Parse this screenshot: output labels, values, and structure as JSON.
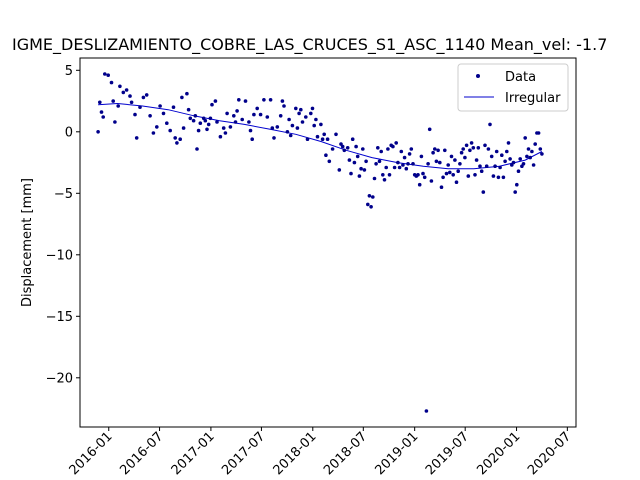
{
  "chart_data": {
    "type": "scatter",
    "title": "IGME_DESLIZAMIENTO_COBRE_LAS_CRUCES_S1_ASC_1140     Mean_vel: -1.7",
    "xlabel": "",
    "ylabel": "Displacement [mm]",
    "xlim": [
      "2015-09-20",
      "2020-08-01"
    ],
    "ylim": [
      -24.0,
      6.0
    ],
    "x_ticks": [
      "2016-01",
      "2016-07",
      "2017-01",
      "2017-07",
      "2018-01",
      "2018-07",
      "2019-01",
      "2019-07",
      "2020-01",
      "2020-07"
    ],
    "y_ticks": [
      5,
      0,
      -5,
      -10,
      -15,
      -20
    ],
    "grid": false,
    "legend": {
      "position": "top-right",
      "entries": [
        "Data",
        "Irregular"
      ]
    },
    "colors": {
      "data": "#00008b",
      "fit": "#0000cd"
    },
    "series": [
      {
        "name": "Data",
        "style": "points",
        "points": [
          [
            "2015-11-24",
            0.0
          ],
          [
            "2015-11-30",
            2.4
          ],
          [
            "2015-12-06",
            1.6
          ],
          [
            "2015-12-12",
            1.2
          ],
          [
            "2015-12-18",
            4.7
          ],
          [
            "2015-12-30",
            4.6
          ],
          [
            "2016-01-11",
            4.0
          ],
          [
            "2016-01-17",
            2.5
          ],
          [
            "2016-01-23",
            0.8
          ],
          [
            "2016-02-04",
            2.1
          ],
          [
            "2016-02-10",
            3.7
          ],
          [
            "2016-02-22",
            3.2
          ],
          [
            "2016-03-05",
            3.4
          ],
          [
            "2016-03-17",
            2.9
          ],
          [
            "2016-03-23",
            2.4
          ],
          [
            "2016-04-04",
            1.4
          ],
          [
            "2016-04-10",
            -0.5
          ],
          [
            "2016-04-22",
            2.0
          ],
          [
            "2016-05-04",
            2.8
          ],
          [
            "2016-05-16",
            3.0
          ],
          [
            "2016-05-28",
            1.3
          ],
          [
            "2016-06-09",
            -0.1
          ],
          [
            "2016-06-21",
            0.4
          ],
          [
            "2016-07-03",
            2.1
          ],
          [
            "2016-07-15",
            1.5
          ],
          [
            "2016-07-27",
            0.7
          ],
          [
            "2016-08-08",
            0.1
          ],
          [
            "2016-08-20",
            2.0
          ],
          [
            "2016-08-26",
            -0.5
          ],
          [
            "2016-09-01",
            -0.9
          ],
          [
            "2016-09-13",
            -0.6
          ],
          [
            "2016-09-19",
            2.8
          ],
          [
            "2016-09-25",
            0.3
          ],
          [
            "2016-10-07",
            3.1
          ],
          [
            "2016-10-13",
            1.8
          ],
          [
            "2016-10-19",
            1.1
          ],
          [
            "2016-10-31",
            0.9
          ],
          [
            "2016-11-06",
            1.3
          ],
          [
            "2016-11-12",
            -1.4
          ],
          [
            "2016-11-18",
            0.1
          ],
          [
            "2016-11-24",
            0.7
          ],
          [
            "2016-12-06",
            1.1
          ],
          [
            "2016-12-12",
            0.9
          ],
          [
            "2016-12-18",
            0.2
          ],
          [
            "2016-12-24",
            0.6
          ],
          [
            "2016-12-30",
            1.1
          ],
          [
            "2017-01-05",
            2.2
          ],
          [
            "2017-01-17",
            2.5
          ],
          [
            "2017-01-23",
            0.8
          ],
          [
            "2017-02-04",
            -0.4
          ],
          [
            "2017-02-16",
            0.3
          ],
          [
            "2017-02-22",
            -0.1
          ],
          [
            "2017-02-28",
            1.5
          ],
          [
            "2017-03-12",
            0.4
          ],
          [
            "2017-03-24",
            1.3
          ],
          [
            "2017-03-30",
            0.8
          ],
          [
            "2017-04-05",
            1.7
          ],
          [
            "2017-04-11",
            2.6
          ],
          [
            "2017-04-23",
            1.0
          ],
          [
            "2017-05-05",
            2.5
          ],
          [
            "2017-05-17",
            0.8
          ],
          [
            "2017-05-23",
            0.1
          ],
          [
            "2017-05-29",
            -0.6
          ],
          [
            "2017-06-04",
            1.4
          ],
          [
            "2017-06-16",
            1.9
          ],
          [
            "2017-06-28",
            1.4
          ],
          [
            "2017-07-10",
            2.6
          ],
          [
            "2017-07-22",
            1.2
          ],
          [
            "2017-08-03",
            2.6
          ],
          [
            "2017-08-09",
            0.3
          ],
          [
            "2017-08-15",
            -0.5
          ],
          [
            "2017-08-27",
            0.4
          ],
          [
            "2017-09-08",
            1.3
          ],
          [
            "2017-09-14",
            2.5
          ],
          [
            "2017-09-20",
            2.1
          ],
          [
            "2017-10-02",
            0.0
          ],
          [
            "2017-10-08",
            1.0
          ],
          [
            "2017-10-14",
            -0.3
          ],
          [
            "2017-10-20",
            0.5
          ],
          [
            "2017-11-01",
            1.9
          ],
          [
            "2017-11-07",
            0.3
          ],
          [
            "2017-11-13",
            1.5
          ],
          [
            "2017-11-19",
            1.8
          ],
          [
            "2017-11-25",
            0.8
          ],
          [
            "2017-12-07",
            1.2
          ],
          [
            "2017-12-13",
            -0.6
          ],
          [
            "2017-12-25",
            1.5
          ],
          [
            "2017-12-31",
            1.9
          ],
          [
            "2018-01-06",
            0.5
          ],
          [
            "2018-01-12",
            1.0
          ],
          [
            "2018-01-18",
            -0.4
          ],
          [
            "2018-01-30",
            0.6
          ],
          [
            "2018-02-05",
            -0.6
          ],
          [
            "2018-02-11",
            -0.2
          ],
          [
            "2018-02-17",
            -1.9
          ],
          [
            "2018-02-23",
            -0.6
          ],
          [
            "2018-03-01",
            -2.4
          ],
          [
            "2018-03-13",
            -1.4
          ],
          [
            "2018-03-25",
            -0.2
          ],
          [
            "2018-04-06",
            -3.1
          ],
          [
            "2018-04-12",
            -1.0
          ],
          [
            "2018-04-18",
            -1.2
          ],
          [
            "2018-04-24",
            -1.5
          ],
          [
            "2018-05-06",
            -1.3
          ],
          [
            "2018-05-12",
            -2.3
          ],
          [
            "2018-05-18",
            -3.4
          ],
          [
            "2018-05-24",
            -0.6
          ],
          [
            "2018-05-30",
            -2.5
          ],
          [
            "2018-06-05",
            -1.2
          ],
          [
            "2018-06-11",
            -2.0
          ],
          [
            "2018-06-17",
            -3.6
          ],
          [
            "2018-06-23",
            -3.0
          ],
          [
            "2018-06-29",
            -1.4
          ],
          [
            "2018-07-05",
            -3.1
          ],
          [
            "2018-07-11",
            -2.4
          ],
          [
            "2018-07-17",
            -5.9
          ],
          [
            "2018-07-23",
            -5.2
          ],
          [
            "2018-07-29",
            -6.1
          ],
          [
            "2018-08-04",
            -5.3
          ],
          [
            "2018-08-10",
            -3.8
          ],
          [
            "2018-08-16",
            -2.6
          ],
          [
            "2018-08-22",
            -1.3
          ],
          [
            "2018-08-28",
            -2.4
          ],
          [
            "2018-09-03",
            -1.6
          ],
          [
            "2018-09-09",
            -3.5
          ],
          [
            "2018-09-15",
            -3.9
          ],
          [
            "2018-09-21",
            -2.9
          ],
          [
            "2018-09-27",
            -1.4
          ],
          [
            "2018-10-03",
            -3.5
          ],
          [
            "2018-10-09",
            -1.1
          ],
          [
            "2018-10-15",
            -1.2
          ],
          [
            "2018-10-21",
            -2.9
          ],
          [
            "2018-10-27",
            -0.9
          ],
          [
            "2018-11-02",
            -2.5
          ],
          [
            "2018-11-08",
            -2.9
          ],
          [
            "2018-11-14",
            -1.6
          ],
          [
            "2018-11-20",
            -2.7
          ],
          [
            "2018-11-26",
            -2.1
          ],
          [
            "2018-12-02",
            -3.0
          ],
          [
            "2018-12-08",
            -2.6
          ],
          [
            "2018-12-14",
            -1.8
          ],
          [
            "2018-12-20",
            -1.4
          ],
          [
            "2018-12-26",
            -2.6
          ],
          [
            "2019-01-01",
            -3.5
          ],
          [
            "2019-01-07",
            -3.6
          ],
          [
            "2019-01-13",
            -3.5
          ],
          [
            "2019-01-19",
            -4.3
          ],
          [
            "2019-01-25",
            -2.0
          ],
          [
            "2019-01-31",
            -3.4
          ],
          [
            "2019-02-06",
            -3.7
          ],
          [
            "2019-02-12",
            -22.7
          ],
          [
            "2019-02-18",
            -2.6
          ],
          [
            "2019-02-24",
            0.2
          ],
          [
            "2019-03-02",
            -4.0
          ],
          [
            "2019-03-08",
            -1.7
          ],
          [
            "2019-03-14",
            -1.4
          ],
          [
            "2019-03-20",
            -2.4
          ],
          [
            "2019-03-26",
            -1.5
          ],
          [
            "2019-04-01",
            -2.5
          ],
          [
            "2019-04-07",
            -4.5
          ],
          [
            "2019-04-13",
            -3.7
          ],
          [
            "2019-04-19",
            -1.5
          ],
          [
            "2019-04-25",
            -3.4
          ],
          [
            "2019-05-01",
            -2.7
          ],
          [
            "2019-05-07",
            -3.3
          ],
          [
            "2019-05-13",
            -2.0
          ],
          [
            "2019-05-19",
            -3.5
          ],
          [
            "2019-05-25",
            -2.3
          ],
          [
            "2019-05-31",
            -4.1
          ],
          [
            "2019-06-06",
            -3.2
          ],
          [
            "2019-06-12",
            -2.6
          ],
          [
            "2019-06-18",
            -1.7
          ],
          [
            "2019-06-24",
            -1.4
          ],
          [
            "2019-06-30",
            -2.1
          ],
          [
            "2019-07-06",
            -1.1
          ],
          [
            "2019-07-12",
            -3.6
          ],
          [
            "2019-07-18",
            -1.5
          ],
          [
            "2019-07-24",
            -0.9
          ],
          [
            "2019-07-30",
            -1.3
          ],
          [
            "2019-08-05",
            -3.5
          ],
          [
            "2019-08-11",
            -2.3
          ],
          [
            "2019-08-17",
            -1.3
          ],
          [
            "2019-08-23",
            -2.8
          ],
          [
            "2019-08-29",
            -3.2
          ],
          [
            "2019-09-04",
            -4.9
          ],
          [
            "2019-09-10",
            -1.1
          ],
          [
            "2019-09-16",
            -2.8
          ],
          [
            "2019-09-22",
            -1.4
          ],
          [
            "2019-09-28",
            0.6
          ],
          [
            "2019-10-04",
            -2.0
          ],
          [
            "2019-10-10",
            -3.6
          ],
          [
            "2019-10-16",
            -2.8
          ],
          [
            "2019-10-22",
            -1.6
          ],
          [
            "2019-10-28",
            -3.7
          ],
          [
            "2019-11-03",
            -2.9
          ],
          [
            "2019-11-09",
            -1.9
          ],
          [
            "2019-11-15",
            -3.7
          ],
          [
            "2019-11-21",
            -2.4
          ],
          [
            "2019-11-27",
            -1.6
          ],
          [
            "2019-12-03",
            -0.9
          ],
          [
            "2019-12-09",
            -2.2
          ],
          [
            "2019-12-15",
            -2.7
          ],
          [
            "2019-12-21",
            -2.5
          ],
          [
            "2019-12-27",
            -4.9
          ],
          [
            "2020-01-02",
            -4.3
          ],
          [
            "2020-01-08",
            -3.2
          ],
          [
            "2020-01-14",
            -2.2
          ],
          [
            "2020-01-20",
            -2.8
          ],
          [
            "2020-01-26",
            -2.6
          ],
          [
            "2020-02-01",
            -0.5
          ],
          [
            "2020-02-07",
            -2.0
          ],
          [
            "2020-02-13",
            -1.4
          ],
          [
            "2020-02-19",
            -2.1
          ],
          [
            "2020-02-25",
            -1.6
          ],
          [
            "2020-03-02",
            -2.7
          ],
          [
            "2020-03-08",
            -1.0
          ],
          [
            "2020-03-14",
            -0.1
          ],
          [
            "2020-03-20",
            -0.1
          ],
          [
            "2020-03-26",
            -1.4
          ],
          [
            "2020-04-01",
            -1.8
          ]
        ]
      },
      {
        "name": "Irregular",
        "style": "line",
        "points": [
          [
            "2015-11-24",
            2.2
          ],
          [
            "2016-02-01",
            2.3
          ],
          [
            "2016-05-01",
            2.1
          ],
          [
            "2016-08-01",
            1.8
          ],
          [
            "2016-11-01",
            1.3
          ],
          [
            "2017-02-01",
            0.9
          ],
          [
            "2017-05-01",
            0.6
          ],
          [
            "2017-08-01",
            0.2
          ],
          [
            "2017-11-01",
            -0.2
          ],
          [
            "2018-02-01",
            -0.8
          ],
          [
            "2018-05-01",
            -1.5
          ],
          [
            "2018-08-01",
            -2.1
          ],
          [
            "2018-11-01",
            -2.5
          ],
          [
            "2019-02-01",
            -2.8
          ],
          [
            "2019-05-01",
            -3.0
          ],
          [
            "2019-08-01",
            -3.0
          ],
          [
            "2019-11-01",
            -2.8
          ],
          [
            "2020-02-01",
            -2.3
          ],
          [
            "2020-04-01",
            -1.6
          ]
        ]
      }
    ]
  }
}
